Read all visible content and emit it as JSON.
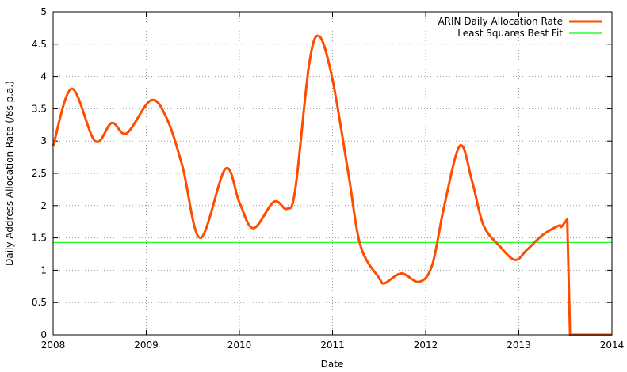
{
  "chart_data": {
    "type": "line",
    "title": "",
    "xlabel": "Date",
    "ylabel": "Daily Address Allocation Rate (/8s p.a.)",
    "xlim": [
      2008,
      2014
    ],
    "ylim": [
      0,
      5
    ],
    "xticks": [
      "2008",
      "2009",
      "2010",
      "2011",
      "2012",
      "2013",
      "2014"
    ],
    "yticks": [
      "0",
      "0.5",
      "1",
      "1.5",
      "2",
      "2.5",
      "3",
      "3.5",
      "4",
      "4.5",
      "5"
    ],
    "grid": true,
    "legend_position": "top-right",
    "series": [
      {
        "name": "ARIN Daily Allocation Rate",
        "color": "#ff4d00",
        "x": [
          2008.0,
          2008.2,
          2008.45,
          2008.63,
          2008.79,
          2009.05,
          2009.22,
          2009.39,
          2009.58,
          2009.85,
          2010.0,
          2010.15,
          2010.37,
          2010.51,
          2010.6,
          2010.75,
          2010.86,
          2011.0,
          2011.17,
          2011.3,
          2011.5,
          2011.56,
          2011.74,
          2011.93,
          2012.07,
          2012.2,
          2012.37,
          2012.5,
          2012.62,
          2012.79,
          2012.96,
          2013.09,
          2013.26,
          2013.43,
          2013.455,
          2013.52,
          2013.55,
          2014.0
        ],
        "y": [
          2.92,
          3.81,
          3.0,
          3.28,
          3.12,
          3.63,
          3.35,
          2.6,
          1.5,
          2.57,
          2.05,
          1.65,
          2.06,
          1.95,
          2.25,
          4.2,
          4.62,
          3.95,
          2.5,
          1.38,
          0.88,
          0.8,
          0.95,
          0.82,
          1.08,
          2.0,
          2.93,
          2.37,
          1.7,
          1.38,
          1.16,
          1.32,
          1.55,
          1.69,
          1.67,
          1.79,
          0,
          0
        ]
      },
      {
        "name": "Least Squares Best Fit",
        "color": "#00ff00",
        "x": [
          2008,
          2014
        ],
        "y": [
          1.43,
          1.43
        ]
      }
    ]
  }
}
